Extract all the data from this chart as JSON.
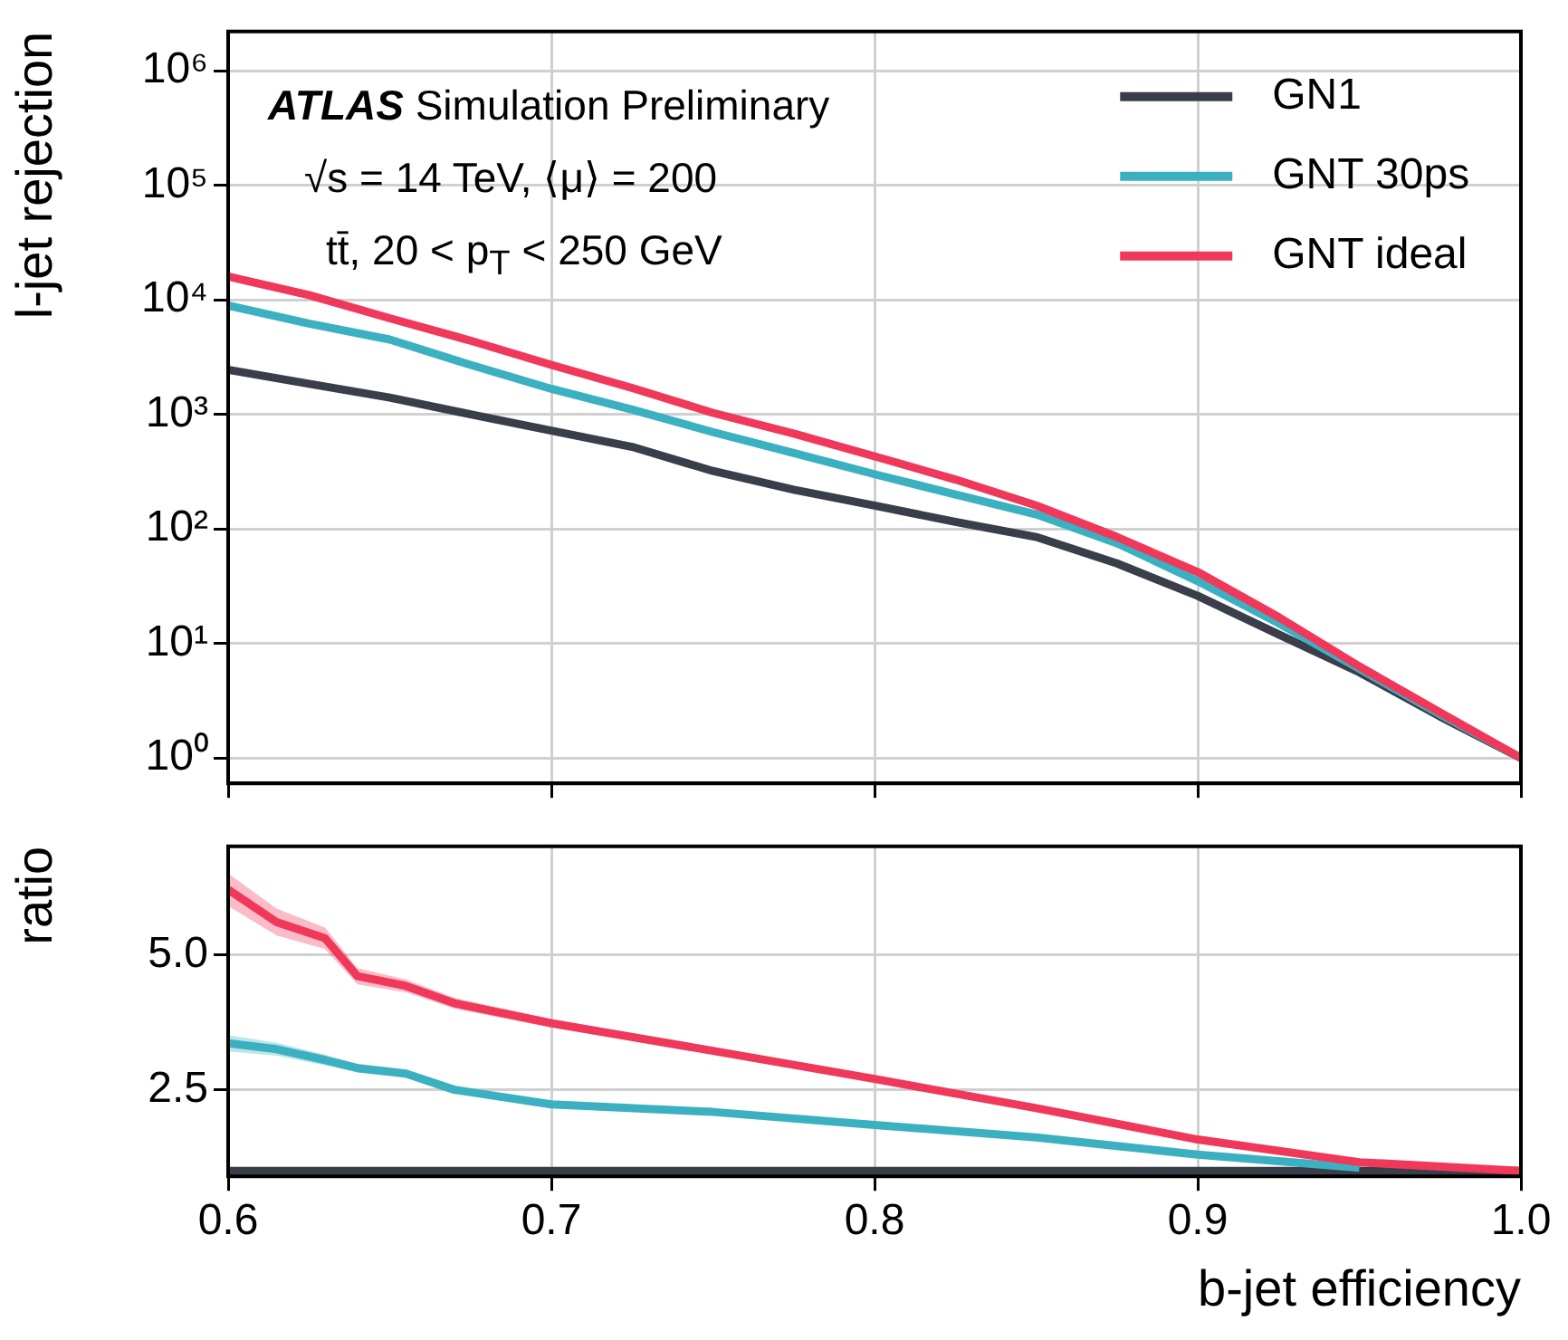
{
  "chart_data": [
    {
      "type": "line",
      "ylabel": "l-jet rejection",
      "log": "y",
      "grid": true,
      "legend": "top right",
      "tick_labels": "y",
      "annotations": [
        "ATLAS Simulation Preliminary",
        "√s = 14 TeV, ⟨μ⟩ = 200",
        "tt̄, 20 < p$_{T}$ < 250 GeV"
      ],
      "xlim": [
        0.6,
        1.0
      ],
      "xticks": [
        {
          "value": 0.6,
          "label": null
        },
        {
          "value": 0.7,
          "label": null
        },
        {
          "value": 0.8,
          "label": null
        },
        {
          "value": 0.9,
          "label": null
        },
        {
          "value": 1.0,
          "label": null
        }
      ],
      "ylim": [
        0.6,
        2200000
      ],
      "yticks": [
        {
          "value": 1,
          "label": "10⁰"
        },
        {
          "value": 10,
          "label": "10¹"
        },
        {
          "value": 100,
          "label": "10²"
        },
        {
          "value": 1000,
          "label": "10³"
        },
        {
          "value": 10000,
          "label": "10⁴"
        },
        {
          "value": 100000,
          "label": "10⁵"
        },
        {
          "value": 1000000,
          "label": "10⁶"
        }
      ],
      "x": [
        0.6,
        0.625,
        0.65,
        0.675,
        0.7,
        0.725,
        0.75,
        0.775,
        0.8,
        0.825,
        0.85,
        0.875,
        0.9,
        0.925,
        0.95,
        0.975,
        1.0
      ],
      "series": [
        {
          "name": "GN1",
          "color": "#3a3d4a",
          "values": [
            2450,
            1850,
            1400,
            1000,
            720,
            520,
            320,
            220,
            160,
            115,
            85,
            50,
            26,
            12,
            5.6,
            2.3,
            1
          ]
        },
        {
          "name": "GNT 30ps",
          "color": "#3ab0c0",
          "values": [
            8900,
            6200,
            4500,
            2700,
            1670,
            1100,
            700,
            460,
            300,
            200,
            134,
            75,
            35,
            15,
            6,
            2.4,
            1
          ]
        },
        {
          "name": "GNT ideal",
          "color": "#f0385a",
          "values": [
            16000,
            11000,
            6900,
            4400,
            2700,
            1700,
            1030,
            680,
            430,
            270,
            160,
            85,
            42,
            17,
            6.3,
            2.5,
            1
          ]
        }
      ]
    },
    {
      "type": "line",
      "ylabel": "ratio",
      "xlabel": "b-jet efficiency",
      "grid": true,
      "xlim": [
        0.6,
        1.0
      ],
      "xticks": [
        0.6,
        0.7,
        0.8,
        0.9,
        {
          "value": 1.0,
          "label": "1.0"
        }
      ],
      "ylim": [
        0.9,
        7.0
      ],
      "yticks": [
        2.5,
        {
          "value": 5,
          "label": "5.0"
        }
      ],
      "x": [
        0.6,
        0.615,
        0.63,
        0.64,
        0.655,
        0.67,
        0.7,
        0.75,
        0.8,
        0.85,
        0.9,
        0.95,
        1.0
      ],
      "series": [
        {
          "color": "#3a3d4a",
          "values": [
            1,
            1,
            1,
            1,
            1,
            1,
            1,
            1,
            1,
            1,
            1,
            1,
            1
          ]
        },
        {
          "color": "#3ab0c0",
          "values": [
            3.36,
            3.25,
            3.05,
            2.9,
            2.8,
            2.5,
            2.23,
            2.09,
            1.85,
            1.62,
            1.3,
            1.06,
            null
          ],
          "lower": [
            3.21,
            3.13,
            2.95,
            2.82,
            2.73,
            2.44,
            2.18,
            2.05,
            1.82,
            1.59,
            1.28,
            1.05,
            1.0
          ],
          "upper": [
            3.51,
            3.37,
            3.15,
            2.98,
            2.87,
            2.56,
            2.28,
            2.13,
            1.88,
            1.65,
            1.32,
            1.07,
            1.0
          ]
        },
        {
          "color": "#f0385a",
          "values": [
            6.2,
            5.6,
            5.3,
            4.6,
            4.42,
            4.1,
            3.73,
            3.22,
            2.7,
            2.16,
            1.58,
            1.16,
            1.0
          ],
          "lower": [
            5.9,
            5.35,
            5.1,
            4.45,
            4.3,
            4.0,
            3.65,
            3.16,
            2.65,
            2.12,
            1.55,
            1.14,
            1.0
          ],
          "upper": [
            6.5,
            5.85,
            5.5,
            4.75,
            4.54,
            4.2,
            3.81,
            3.28,
            2.75,
            2.2,
            1.61,
            1.18,
            1.0
          ]
        }
      ]
    }
  ]
}
